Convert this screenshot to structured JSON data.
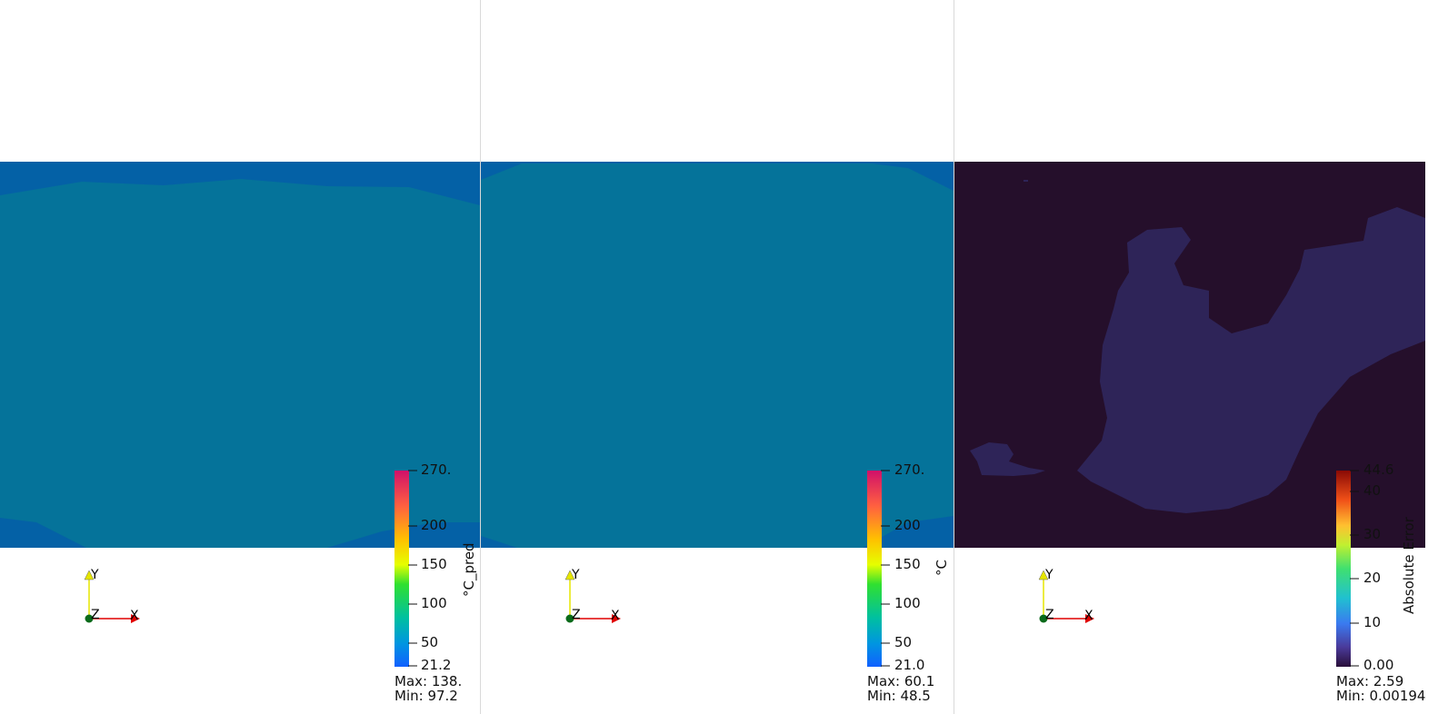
{
  "views": [
    {
      "id": "pred",
      "scalar_title": "°C_pred",
      "ticks": [
        "270.",
        "200",
        "150",
        "100",
        "50",
        "21.2"
      ],
      "max_text": "Max: 138.",
      "min_text": "Min: 97.2",
      "axes": {
        "x": "X",
        "y": "Y",
        "z": "Z"
      }
    },
    {
      "id": "true",
      "scalar_title": "°C",
      "ticks": [
        "270.",
        "200",
        "150",
        "100",
        "50",
        "21.0"
      ],
      "max_text": "Max: 60.1",
      "min_text": "Min: 48.5",
      "axes": {
        "x": "X",
        "y": "Y",
        "z": "Z"
      }
    },
    {
      "id": "err",
      "scalar_title": "Absolute Error",
      "ticks": [
        "44.6",
        "40",
        "30",
        "20",
        "10",
        "0.00"
      ],
      "max_text": "Max: 2.59",
      "min_text": "Min: 0.00194",
      "axes": {
        "x": "X",
        "y": "Y",
        "z": "Z"
      }
    }
  ],
  "colors": {
    "field_teal": "#05739a",
    "field_blue": "#0461a6",
    "error_dark": "#250f2b",
    "error_purple": "#2e2458"
  }
}
